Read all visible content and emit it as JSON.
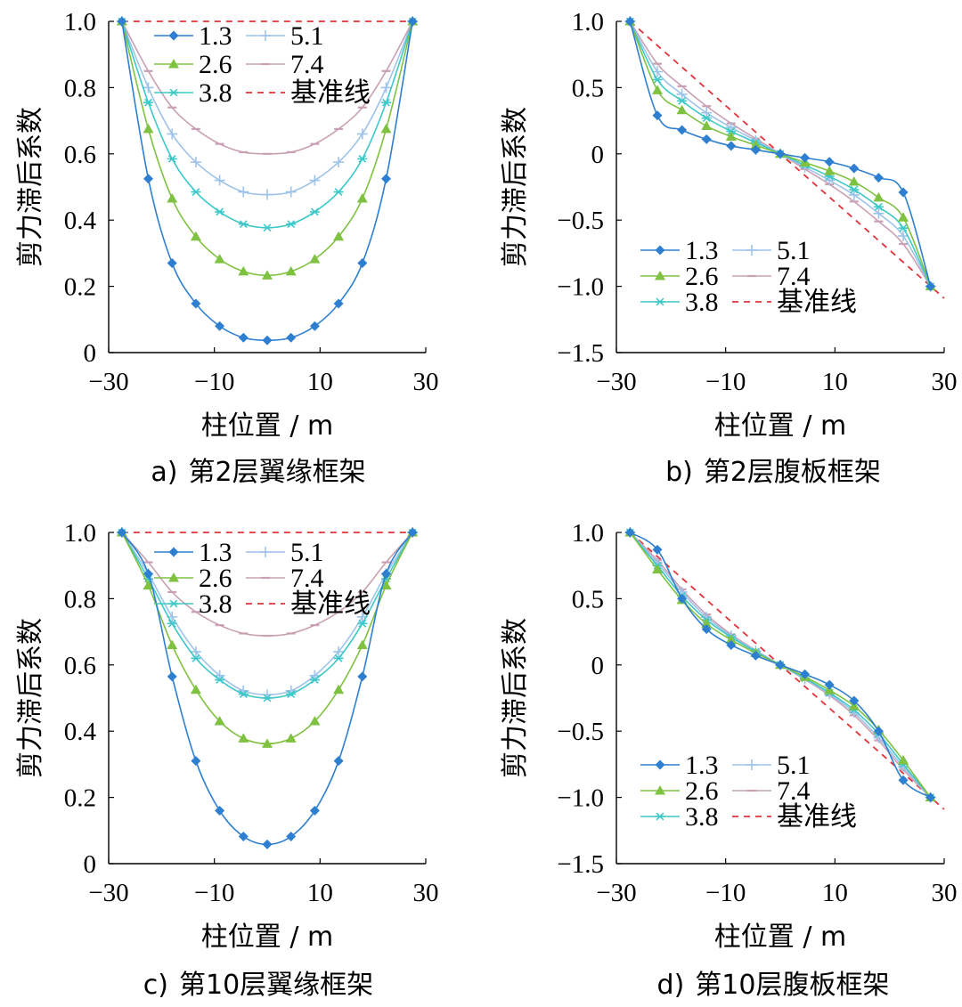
{
  "chart_data": [
    {
      "type": "line",
      "panel": "a",
      "caption_prefix": "a)",
      "caption": "第2层翼缘框架",
      "xlabel": "柱位置 / m",
      "ylabel": "剪力滞后系数",
      "xlim": [
        -30,
        30
      ],
      "ylim": [
        0,
        1.0
      ],
      "xticks": [
        -30,
        -10,
        10,
        30
      ],
      "xtick_labels": [
        "−30",
        "−10",
        "10",
        "30"
      ],
      "yticks": [
        0,
        0.2,
        0.4,
        0.6,
        0.8,
        1.0
      ],
      "ytick_labels": [
        "0",
        "0.2",
        "0.4",
        "0.6",
        "0.8",
        "1.0"
      ],
      "legend_position": "top",
      "legend": [
        "1.3",
        "5.1",
        "2.6",
        "7.4",
        "3.8",
        "基准线"
      ],
      "x": [
        -27.5,
        -22.5,
        -18,
        -13.5,
        -9,
        -4.5,
        0,
        4.5,
        9,
        13.5,
        18,
        22.5,
        27.5
      ],
      "series": [
        {
          "name": "1.3",
          "color": "#2e7fd0",
          "marker": "diamond",
          "values": [
            1.0,
            0.525,
            0.27,
            0.148,
            0.08,
            0.045,
            0.037,
            0.045,
            0.08,
            0.148,
            0.27,
            0.525,
            1.0
          ]
        },
        {
          "name": "2.6",
          "color": "#7fc241",
          "marker": "triangle",
          "values": [
            1.0,
            0.675,
            0.465,
            0.35,
            0.282,
            0.245,
            0.233,
            0.245,
            0.282,
            0.35,
            0.465,
            0.675,
            1.0
          ]
        },
        {
          "name": "3.8",
          "color": "#3ec8c8",
          "marker": "asterisk",
          "values": [
            1.0,
            0.755,
            0.585,
            0.485,
            0.425,
            0.388,
            0.377,
            0.388,
            0.425,
            0.485,
            0.585,
            0.755,
            1.0
          ]
        },
        {
          "name": "5.1",
          "color": "#9ec3ea",
          "marker": "plus",
          "values": [
            1.0,
            0.8,
            0.66,
            0.575,
            0.52,
            0.485,
            0.477,
            0.485,
            0.52,
            0.575,
            0.66,
            0.8,
            1.0
          ]
        },
        {
          "name": "7.4",
          "color": "#c9a0b4",
          "marker": "dash",
          "values": [
            1.0,
            0.85,
            0.74,
            0.675,
            0.63,
            0.605,
            0.6,
            0.605,
            0.63,
            0.675,
            0.74,
            0.85,
            1.0
          ]
        },
        {
          "name": "基准线",
          "color": "#e0333a",
          "marker": "none",
          "dashed": true,
          "x": [
            -27.5,
            27.5
          ],
          "values": [
            1.0,
            1.0
          ]
        }
      ]
    },
    {
      "type": "line",
      "panel": "b",
      "caption_prefix": "b)",
      "caption": "第2层腹板框架",
      "xlabel": "柱位置 / m",
      "ylabel": "剪力滞后系数",
      "xlim": [
        -30,
        30
      ],
      "ylim": [
        -1.5,
        1.0
      ],
      "xticks": [
        -30,
        -10,
        10,
        30
      ],
      "xtick_labels": [
        "−30",
        "−10",
        "10",
        "30"
      ],
      "yticks": [
        -1.5,
        -1.0,
        -0.5,
        0,
        0.5,
        1.0
      ],
      "ytick_labels": [
        "−1.5",
        "−1.0",
        "−0.5",
        "0",
        "0.5",
        "1.0"
      ],
      "legend_position": "bottom-left",
      "legend": [
        "1.3",
        "5.1",
        "2.6",
        "7.4",
        "3.8",
        "基准线"
      ],
      "x": [
        -27.5,
        -22.5,
        -18,
        -13.5,
        -9,
        -4.5,
        0,
        4.5,
        9,
        13.5,
        18,
        22.5,
        27.5
      ],
      "series": [
        {
          "name": "1.3",
          "color": "#2e7fd0",
          "marker": "diamond",
          "values": [
            1.0,
            0.29,
            0.18,
            0.11,
            0.06,
            0.03,
            0.0,
            -0.03,
            -0.06,
            -0.11,
            -0.18,
            -0.29,
            -1.0
          ]
        },
        {
          "name": "2.6",
          "color": "#7fc241",
          "marker": "triangle",
          "values": [
            1.0,
            0.48,
            0.33,
            0.21,
            0.13,
            0.065,
            0.0,
            -0.065,
            -0.13,
            -0.21,
            -0.33,
            -0.48,
            -1.0
          ]
        },
        {
          "name": "3.8",
          "color": "#3ec8c8",
          "marker": "asterisk",
          "values": [
            1.0,
            0.56,
            0.4,
            0.27,
            0.17,
            0.085,
            0.0,
            -0.085,
            -0.17,
            -0.27,
            -0.4,
            -0.56,
            -1.0
          ]
        },
        {
          "name": "5.1",
          "color": "#9ec3ea",
          "marker": "plus",
          "values": [
            1.0,
            0.62,
            0.45,
            0.31,
            0.2,
            0.1,
            0.0,
            -0.1,
            -0.2,
            -0.31,
            -0.45,
            -0.62,
            -1.0
          ]
        },
        {
          "name": "7.4",
          "color": "#c9a0b4",
          "marker": "dash",
          "values": [
            1.0,
            0.68,
            0.51,
            0.36,
            0.23,
            0.115,
            0.0,
            -0.115,
            -0.23,
            -0.36,
            -0.51,
            -0.68,
            -1.0
          ]
        },
        {
          "name": "基准线",
          "color": "#e0333a",
          "marker": "none",
          "dashed": true,
          "x": [
            -27.5,
            30
          ],
          "values": [
            1.0,
            -1.09
          ]
        }
      ]
    },
    {
      "type": "line",
      "panel": "c",
      "caption_prefix": "c)",
      "caption": "第10层翼缘框架",
      "xlabel": "柱位置 / m",
      "ylabel": "剪力滞后系数",
      "xlim": [
        -30,
        30
      ],
      "ylim": [
        0,
        1.0
      ],
      "xticks": [
        -30,
        -10,
        10,
        30
      ],
      "xtick_labels": [
        "−30",
        "−10",
        "10",
        "30"
      ],
      "yticks": [
        0,
        0.2,
        0.4,
        0.6,
        0.8,
        1.0
      ],
      "ytick_labels": [
        "0",
        "0.2",
        "0.4",
        "0.6",
        "0.8",
        "1.0"
      ],
      "legend_position": "top",
      "legend": [
        "1.3",
        "5.1",
        "2.6",
        "7.4",
        "3.8",
        "基准线"
      ],
      "x": [
        -27.5,
        -22.5,
        -18,
        -13.5,
        -9,
        -4.5,
        0,
        4.5,
        9,
        13.5,
        18,
        22.5,
        27.5
      ],
      "series": [
        {
          "name": "1.3",
          "color": "#2e7fd0",
          "marker": "diamond",
          "values": [
            1.0,
            0.875,
            0.565,
            0.31,
            0.16,
            0.082,
            0.058,
            0.082,
            0.16,
            0.31,
            0.565,
            0.875,
            1.0
          ]
        },
        {
          "name": "2.6",
          "color": "#7fc241",
          "marker": "triangle",
          "values": [
            1.0,
            0.84,
            0.66,
            0.525,
            0.43,
            0.378,
            0.362,
            0.378,
            0.43,
            0.525,
            0.66,
            0.84,
            1.0
          ]
        },
        {
          "name": "3.8",
          "color": "#3ec8c8",
          "marker": "asterisk",
          "values": [
            1.0,
            0.86,
            0.725,
            0.62,
            0.555,
            0.512,
            0.5,
            0.512,
            0.555,
            0.62,
            0.725,
            0.86,
            1.0
          ]
        },
        {
          "name": "5.1",
          "color": "#9ec3ea",
          "marker": "plus",
          "values": [
            1.0,
            0.875,
            0.745,
            0.64,
            0.568,
            0.522,
            0.51,
            0.522,
            0.568,
            0.64,
            0.745,
            0.875,
            1.0
          ]
        },
        {
          "name": "7.4",
          "color": "#c9a0b4",
          "marker": "dash",
          "values": [
            1.0,
            0.91,
            0.82,
            0.76,
            0.72,
            0.695,
            0.688,
            0.695,
            0.72,
            0.76,
            0.82,
            0.91,
            1.0
          ]
        },
        {
          "name": "基准线",
          "color": "#e0333a",
          "marker": "none",
          "dashed": true,
          "x": [
            -27.5,
            27.5
          ],
          "values": [
            1.0,
            1.0
          ]
        }
      ]
    },
    {
      "type": "line",
      "panel": "d",
      "caption_prefix": "d)",
      "caption": "第10层腹板框架",
      "xlabel": "柱位置 / m",
      "ylabel": "剪力滞后系数",
      "xlim": [
        -30,
        30
      ],
      "ylim": [
        -1.5,
        1.0
      ],
      "xticks": [
        -30,
        -10,
        10,
        30
      ],
      "xtick_labels": [
        "−30",
        "−10",
        "10",
        "30"
      ],
      "yticks": [
        -1.5,
        -1.0,
        -0.5,
        0,
        0.5,
        1.0
      ],
      "ytick_labels": [
        "−1.5",
        "−1.0",
        "−0.5",
        "0",
        "0.5",
        "1.0"
      ],
      "legend_position": "bottom-left",
      "legend": [
        "1.3",
        "5.1",
        "2.6",
        "7.4",
        "3.8",
        "基准线"
      ],
      "x": [
        -27.5,
        -22.5,
        -18,
        -13.5,
        -9,
        -4.5,
        0,
        4.5,
        9,
        13.5,
        18,
        22.5,
        27.5
      ],
      "series": [
        {
          "name": "1.3",
          "color": "#2e7fd0",
          "marker": "diamond",
          "values": [
            1.0,
            0.87,
            0.5,
            0.27,
            0.15,
            0.07,
            0.0,
            -0.07,
            -0.15,
            -0.27,
            -0.5,
            -0.87,
            -1.0
          ]
        },
        {
          "name": "2.6",
          "color": "#7fc241",
          "marker": "triangle",
          "values": [
            1.0,
            0.72,
            0.49,
            0.31,
            0.19,
            0.09,
            0.0,
            -0.09,
            -0.19,
            -0.31,
            -0.49,
            -0.72,
            -1.0
          ]
        },
        {
          "name": "3.8",
          "color": "#3ec8c8",
          "marker": "asterisk",
          "values": [
            1.0,
            0.75,
            0.52,
            0.34,
            0.21,
            0.1,
            0.0,
            -0.1,
            -0.21,
            -0.34,
            -0.52,
            -0.75,
            -1.0
          ]
        },
        {
          "name": "5.1",
          "color": "#9ec3ea",
          "marker": "plus",
          "values": [
            1.0,
            0.77,
            0.55,
            0.36,
            0.22,
            0.105,
            0.0,
            -0.105,
            -0.22,
            -0.36,
            -0.55,
            -0.77,
            -1.0
          ]
        },
        {
          "name": "7.4",
          "color": "#c9a0b4",
          "marker": "dash",
          "values": [
            1.0,
            0.79,
            0.57,
            0.38,
            0.23,
            0.11,
            0.0,
            -0.11,
            -0.23,
            -0.38,
            -0.57,
            -0.79,
            -1.0
          ]
        },
        {
          "name": "基准线",
          "color": "#e0333a",
          "marker": "none",
          "dashed": true,
          "x": [
            -27.5,
            30
          ],
          "values": [
            1.0,
            -1.09
          ]
        }
      ]
    }
  ]
}
